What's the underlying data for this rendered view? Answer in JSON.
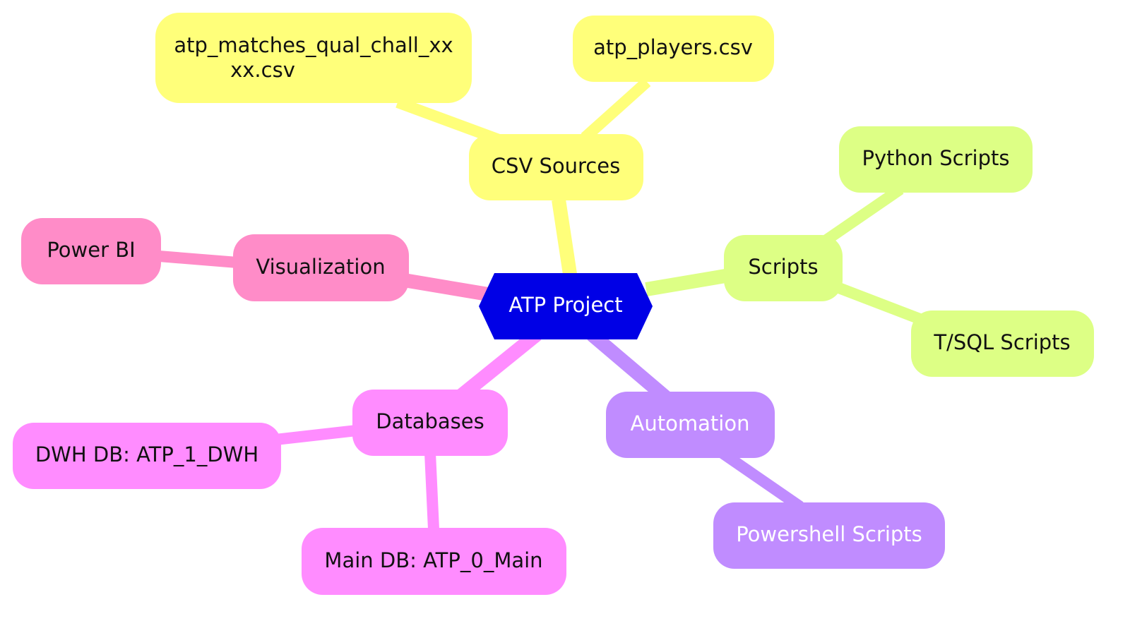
{
  "diagram": {
    "colors": {
      "root": "#0000e6",
      "root_text": "#ffffff",
      "csv": "#ffff7a",
      "scripts": "#ddff85",
      "visualization": "#ff8cc8",
      "databases": "#ff8cff",
      "automation": "#c08cff",
      "dark_text": "#111111",
      "light_text": "#ffffff"
    },
    "root": {
      "label": "ATP Project"
    },
    "branches": {
      "csv_sources": {
        "label": "CSV Sources",
        "children": [
          {
            "label_line1": "atp_matches_qual_chall_xx",
            "label_line2": "xx.csv"
          },
          {
            "label": "atp_players.csv"
          }
        ]
      },
      "scripts": {
        "label": "Scripts",
        "children": [
          {
            "label": "Python Scripts"
          },
          {
            "label": "T/SQL Scripts"
          }
        ]
      },
      "visualization": {
        "label": "Visualization",
        "children": [
          {
            "label": "Power BI"
          }
        ]
      },
      "databases": {
        "label": "Databases",
        "children": [
          {
            "label": "DWH DB: ATP_1_DWH"
          },
          {
            "label": "Main DB: ATP_0_Main"
          }
        ]
      },
      "automation": {
        "label": "Automation",
        "children": [
          {
            "label": "Powershell Scripts"
          }
        ]
      }
    }
  }
}
